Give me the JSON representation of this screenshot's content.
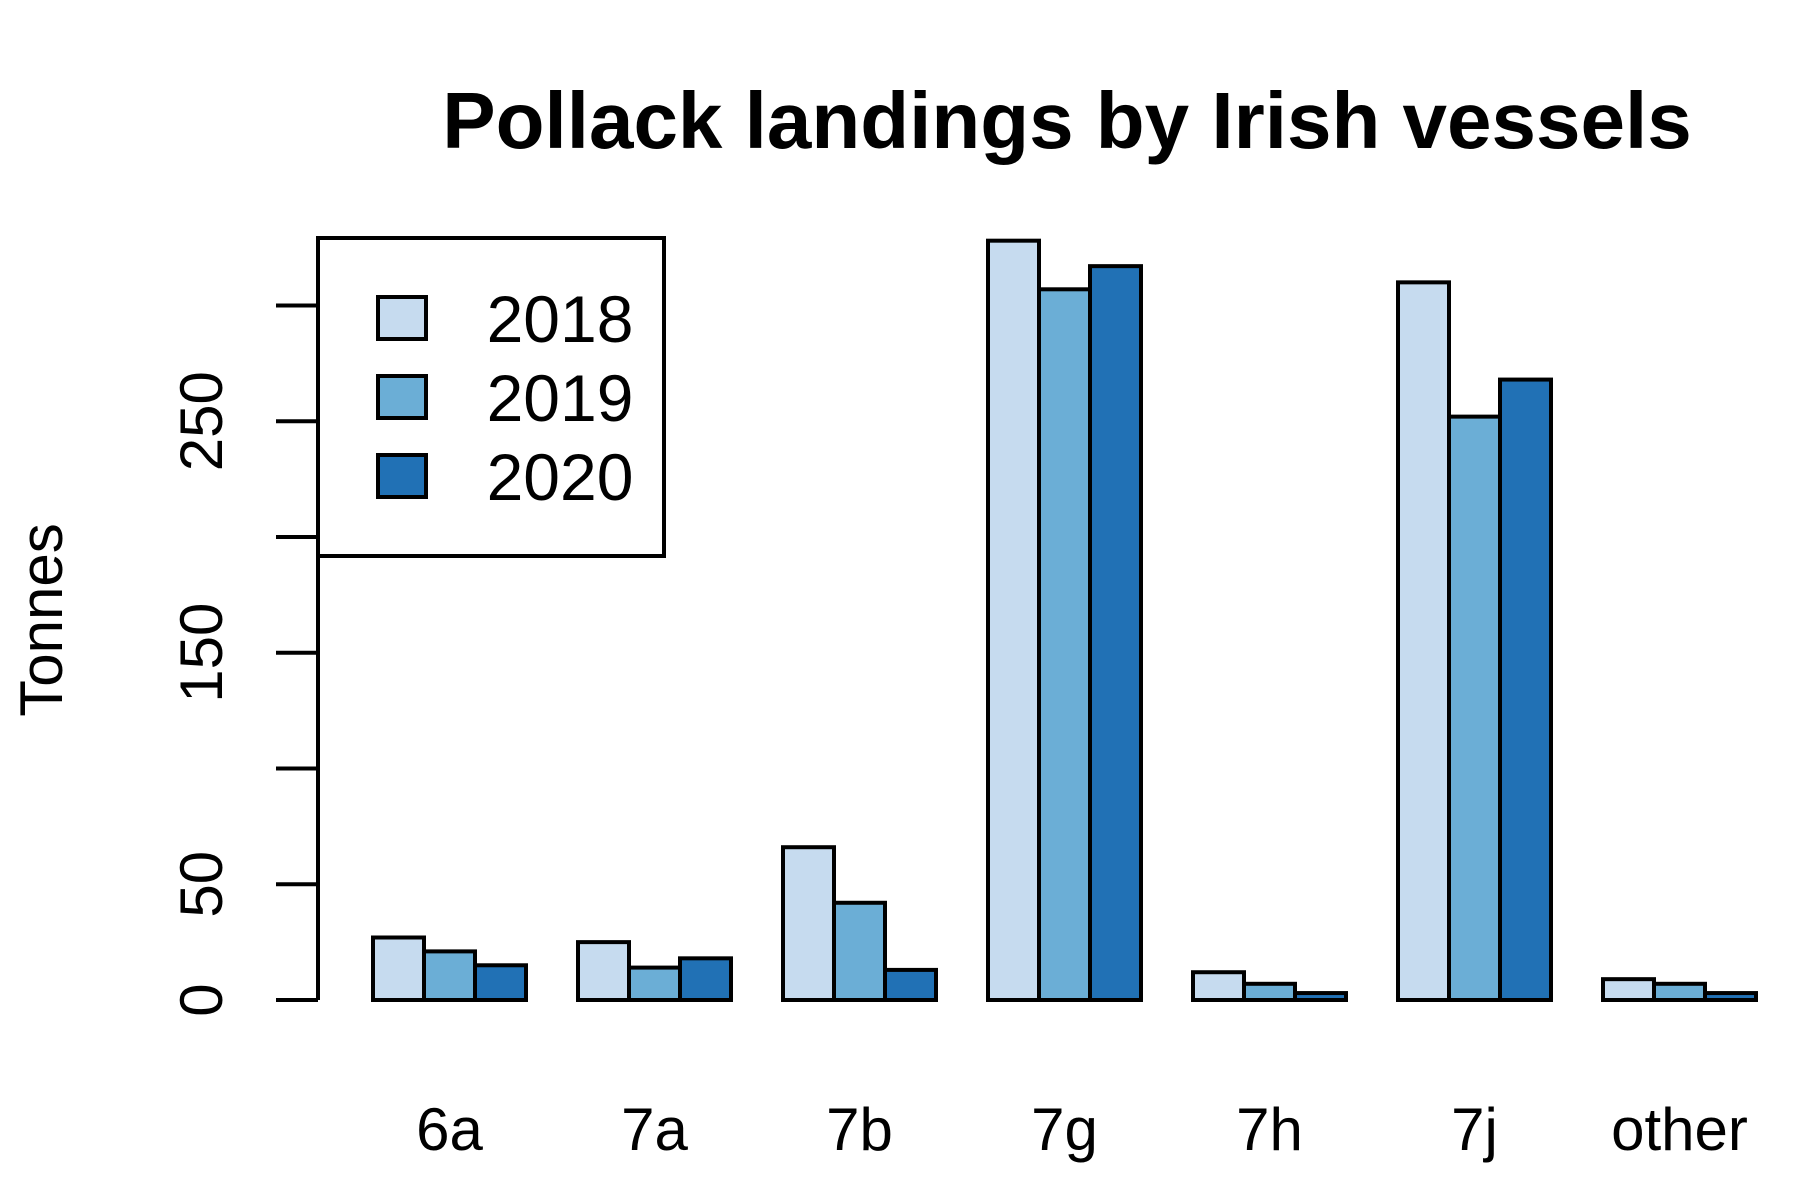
{
  "chart_data": {
    "type": "bar",
    "title": "Pollack landings by Irish vessels",
    "xlabel": "",
    "ylabel": "Tonnes",
    "categories": [
      "6a",
      "7a",
      "7b",
      "7g",
      "7h",
      "7j",
      "other"
    ],
    "series": [
      {
        "name": "2018",
        "color": "#c6dbef",
        "values": [
          27,
          25,
          66,
          328,
          12,
          310,
          9
        ]
      },
      {
        "name": "2019",
        "color": "#6baed6",
        "values": [
          21,
          14,
          42,
          307,
          7,
          252,
          7
        ]
      },
      {
        "name": "2020",
        "color": "#2171b5",
        "values": [
          15,
          18,
          13,
          317,
          3,
          268,
          3
        ]
      }
    ],
    "y_ticks": [
      0,
      50,
      100,
      150,
      200,
      250,
      300
    ],
    "y_tick_labels": [
      "0",
      "50",
      "",
      "150",
      "",
      "250",
      ""
    ],
    "ylim": [
      0,
      330
    ],
    "grid": false,
    "legend_position": "top-left"
  }
}
